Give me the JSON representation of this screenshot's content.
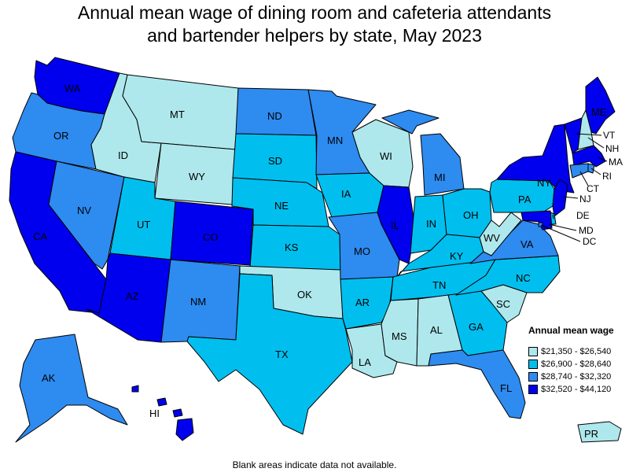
{
  "title": {
    "line1": "Annual mean wage of dining room and cafeteria attendants",
    "line2": "and bartender helpers by state, May 2023"
  },
  "legend": {
    "title": "Annual mean wage",
    "items": [
      {
        "label": "$21,350 - $26,540",
        "color": "#aee8ec"
      },
      {
        "label": "$26,900 - $28,640",
        "color": "#00bfef"
      },
      {
        "label": "$28,740 - $32,320",
        "color": "#2e8bf0"
      },
      {
        "label": "$32,520 - $44,120",
        "color": "#0000ee"
      }
    ]
  },
  "footnote": "Blank areas indicate data not available.",
  "states": [
    {
      "abbr": "WA",
      "class": 4
    },
    {
      "abbr": "OR",
      "class": 3
    },
    {
      "abbr": "CA",
      "class": 4
    },
    {
      "abbr": "NV",
      "class": 3
    },
    {
      "abbr": "ID",
      "class": 1
    },
    {
      "abbr": "MT",
      "class": 1
    },
    {
      "abbr": "WY",
      "class": 1
    },
    {
      "abbr": "UT",
      "class": 2
    },
    {
      "abbr": "AZ",
      "class": 4
    },
    {
      "abbr": "CO",
      "class": 4
    },
    {
      "abbr": "NM",
      "class": 3
    },
    {
      "abbr": "ND",
      "class": 3
    },
    {
      "abbr": "SD",
      "class": 2
    },
    {
      "abbr": "NE",
      "class": 2
    },
    {
      "abbr": "KS",
      "class": 2
    },
    {
      "abbr": "OK",
      "class": 1
    },
    {
      "abbr": "TX",
      "class": 2
    },
    {
      "abbr": "MN",
      "class": 3
    },
    {
      "abbr": "IA",
      "class": 2
    },
    {
      "abbr": "MO",
      "class": 3
    },
    {
      "abbr": "AR",
      "class": 2
    },
    {
      "abbr": "LA",
      "class": 1
    },
    {
      "abbr": "WI",
      "class": 1
    },
    {
      "abbr": "IL",
      "class": 4
    },
    {
      "abbr": "MI",
      "class": 3
    },
    {
      "abbr": "IN",
      "class": 2
    },
    {
      "abbr": "OH",
      "class": 2
    },
    {
      "abbr": "KY",
      "class": 2
    },
    {
      "abbr": "TN",
      "class": 2
    },
    {
      "abbr": "MS",
      "class": 1
    },
    {
      "abbr": "AL",
      "class": 1
    },
    {
      "abbr": "GA",
      "class": 2
    },
    {
      "abbr": "FL",
      "class": 3
    },
    {
      "abbr": "SC",
      "class": 1
    },
    {
      "abbr": "NC",
      "class": 2
    },
    {
      "abbr": "VA",
      "class": 3
    },
    {
      "abbr": "WV",
      "class": 1
    },
    {
      "abbr": "PA",
      "class": 2
    },
    {
      "abbr": "NY",
      "class": 4
    },
    {
      "abbr": "ME",
      "class": 4
    },
    {
      "abbr": "VT",
      "class": 4
    },
    {
      "abbr": "NH",
      "class": 1
    },
    {
      "abbr": "MA",
      "class": 4
    },
    {
      "abbr": "RI",
      "class": 3
    },
    {
      "abbr": "CT",
      "class": 3
    },
    {
      "abbr": "NJ",
      "class": 4
    },
    {
      "abbr": "DE",
      "class": 2
    },
    {
      "abbr": "MD",
      "class": 4
    },
    {
      "abbr": "DC",
      "class": 3
    },
    {
      "abbr": "AK",
      "class": 3
    },
    {
      "abbr": "HI",
      "class": 4
    },
    {
      "abbr": "PR",
      "class": 1
    }
  ]
}
